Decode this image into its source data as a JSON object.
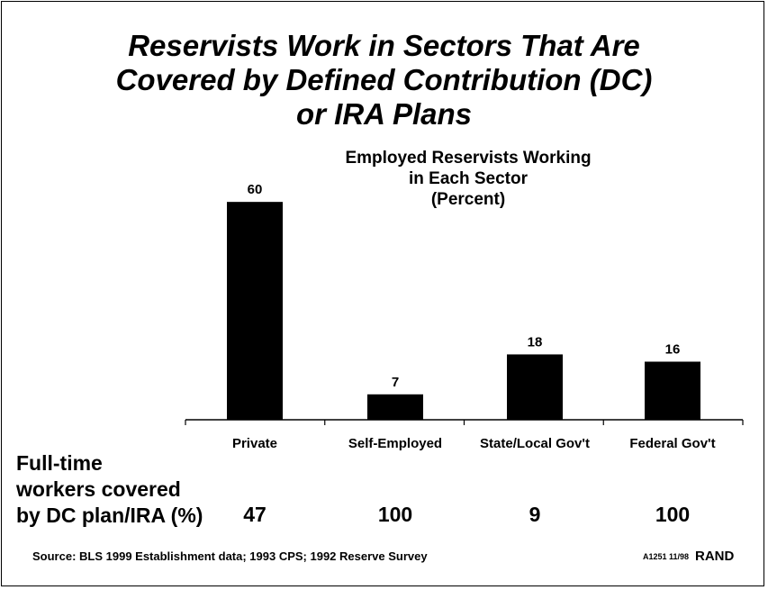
{
  "title_lines": [
    "Reservists Work in Sectors That Are",
    "Covered by Defined Contribution (DC)",
    "or IRA Plans"
  ],
  "chart_data": {
    "type": "bar",
    "title": "Employed Reservists Working in Each Sector (Percent)",
    "title_lines": [
      "Employed Reservists Working",
      "in Each Sector",
      "(Percent)"
    ],
    "categories": [
      "Private",
      "Self-Employed",
      "State/Local Gov't",
      "Federal Gov't"
    ],
    "values": [
      60,
      7,
      18,
      16
    ],
    "bar_color": "#000000",
    "ylim": [
      0,
      65
    ],
    "grid": false,
    "xlabel": "",
    "ylabel": ""
  },
  "coverage_row": {
    "label_lines": [
      "Full-time",
      "workers covered",
      "by DC plan/IRA (%)"
    ],
    "values": [
      "47",
      "100",
      "9",
      "100"
    ]
  },
  "footer": {
    "source": "Source: BLS 1999 Establishment data; 1993 CPS; 1992 Reserve Survey",
    "code": "A1251 11/98",
    "brand": "RAND"
  }
}
